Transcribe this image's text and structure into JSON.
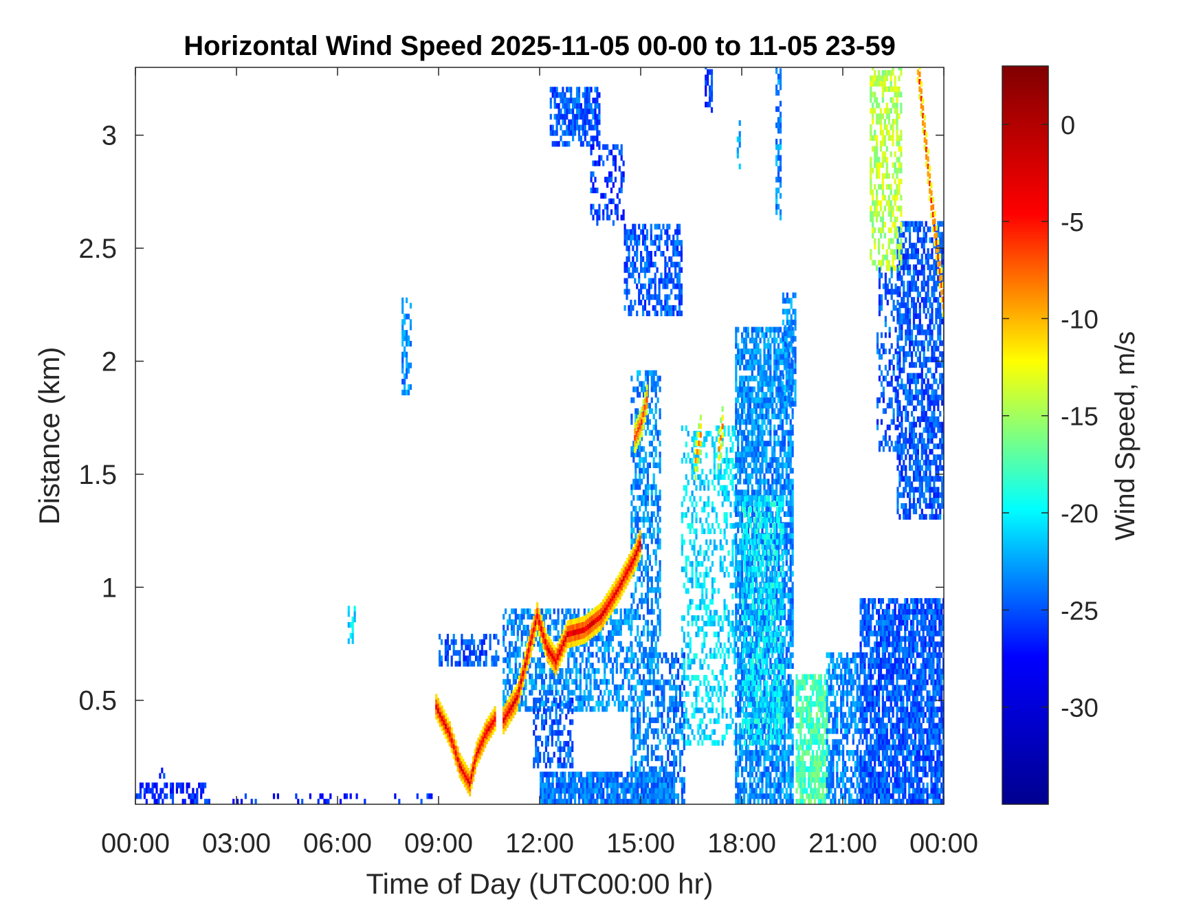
{
  "chart_data": {
    "type": "heatmap",
    "title": "Horizontal Wind Speed 2025-11-05 00-00 to 11-05 23-59",
    "xlabel": "Time of Day (UTC00:00 hr)",
    "ylabel": "Distance (km)",
    "colorbar_label": "Wind Speed, m/s",
    "xlim": [
      0,
      24
    ],
    "ylim": [
      0.04,
      3.3
    ],
    "clim": [
      -35,
      3
    ],
    "x_ticks": [
      0,
      3,
      6,
      9,
      12,
      15,
      18,
      21,
      24
    ],
    "x_tick_labels": [
      "00:00",
      "03:00",
      "06:00",
      "09:00",
      "12:00",
      "15:00",
      "18:00",
      "21:00",
      "00:00"
    ],
    "y_ticks": [
      0.5,
      1,
      1.5,
      2,
      2.5,
      3
    ],
    "y_tick_labels": [
      "0.5",
      "1",
      "1.5",
      "2",
      "2.5",
      "3"
    ],
    "colorbar_ticks": [
      0,
      -5,
      -10,
      -15,
      -20,
      -25,
      -30
    ],
    "colorbar_tick_labels": [
      "0",
      "-5",
      "-10",
      "-15",
      "-20",
      "-25",
      "-30"
    ],
    "colormap": "jet",
    "colormap_stops": [
      "#00008f",
      "#0000ff",
      "#00ffff",
      "#ffff00",
      "#ff0000",
      "#800000"
    ],
    "grid": false,
    "regions": [
      {
        "t0": 0.0,
        "t1": 2.1,
        "d0": 0.04,
        "d1": 0.13,
        "v": -29,
        "density": 0.5
      },
      {
        "t0": 0.7,
        "t1": 1.1,
        "d0": 0.13,
        "d1": 0.2,
        "v": -29,
        "density": 0.25
      },
      {
        "t0": 2.1,
        "t1": 8.8,
        "d0": 0.04,
        "d1": 0.07,
        "v": -29,
        "density": 0.12
      },
      {
        "t0": 7.9,
        "t1": 8.15,
        "d0": 1.85,
        "d1": 2.28,
        "v": -25,
        "density": 0.6
      },
      {
        "t0": 6.3,
        "t1": 6.5,
        "d0": 0.75,
        "d1": 0.9,
        "v": -22,
        "density": 0.5
      },
      {
        "t0": 9.0,
        "t1": 10.8,
        "d0": 0.65,
        "d1": 0.78,
        "v": -27,
        "density": 0.5
      },
      {
        "t0": 10.9,
        "t1": 14.7,
        "d0": 0.45,
        "d1": 0.9,
        "v": -25,
        "density": 0.55
      },
      {
        "t0": 11.8,
        "t1": 13.0,
        "d0": 0.2,
        "d1": 0.5,
        "v": -27,
        "density": 0.45
      },
      {
        "t0": 12.0,
        "t1": 16.0,
        "d0": 0.04,
        "d1": 0.16,
        "v": -26,
        "density": 0.9
      },
      {
        "t0": 12.3,
        "t1": 13.8,
        "d0": 2.95,
        "d1": 3.2,
        "v": -27,
        "density": 0.65
      },
      {
        "t0": 13.5,
        "t1": 14.5,
        "d0": 2.6,
        "d1": 2.95,
        "v": -28,
        "density": 0.4
      },
      {
        "t0": 14.5,
        "t1": 16.2,
        "d0": 2.2,
        "d1": 2.6,
        "v": -27,
        "density": 0.55
      },
      {
        "t0": 14.7,
        "t1": 15.6,
        "d0": 0.04,
        "d1": 1.95,
        "v": -25,
        "density": 0.5
      },
      {
        "t0": 15.6,
        "t1": 16.3,
        "d0": 0.04,
        "d1": 0.7,
        "v": -26,
        "density": 0.55
      },
      {
        "t0": 16.2,
        "t1": 17.8,
        "d0": 0.3,
        "d1": 1.7,
        "v": -22,
        "density": 0.35
      },
      {
        "t0": 16.9,
        "t1": 17.1,
        "d0": 3.1,
        "d1": 3.3,
        "v": -28,
        "density": 0.5
      },
      {
        "t0": 17.8,
        "t1": 19.5,
        "d0": 0.04,
        "d1": 2.15,
        "v": -25,
        "density": 0.75
      },
      {
        "t0": 18.0,
        "t1": 19.2,
        "d0": 0.3,
        "d1": 1.4,
        "v": -21,
        "density": 0.45
      },
      {
        "t0": 19.2,
        "t1": 19.6,
        "d0": 1.8,
        "d1": 2.3,
        "v": -25,
        "density": 0.6
      },
      {
        "t0": 19.6,
        "t1": 20.5,
        "d0": 0.04,
        "d1": 0.6,
        "v": -18,
        "density": 0.75
      },
      {
        "t0": 20.5,
        "t1": 21.5,
        "d0": 0.04,
        "d1": 0.7,
        "v": -25,
        "density": 0.6
      },
      {
        "t0": 21.5,
        "t1": 24.0,
        "d0": 0.04,
        "d1": 0.95,
        "v": -27,
        "density": 0.8
      },
      {
        "t0": 22.6,
        "t1": 24.0,
        "d0": 1.3,
        "d1": 2.6,
        "v": -27,
        "density": 0.65
      },
      {
        "t0": 21.8,
        "t1": 22.7,
        "d0": 2.4,
        "d1": 3.3,
        "v": -14,
        "density": 0.55
      },
      {
        "t0": 22.0,
        "t1": 22.6,
        "d0": 1.6,
        "d1": 2.4,
        "v": -27,
        "density": 0.35
      },
      {
        "t0": 19.0,
        "t1": 19.15,
        "d0": 2.6,
        "d1": 3.3,
        "v": -25,
        "density": 0.5
      },
      {
        "t0": 17.85,
        "t1": 17.95,
        "d0": 2.85,
        "d1": 3.05,
        "v": -24,
        "density": 0.6
      }
    ],
    "traces": [
      {
        "points": [
          [
            8.9,
            0.46
          ],
          [
            9.3,
            0.34
          ],
          [
            9.6,
            0.2
          ],
          [
            9.9,
            0.12
          ],
          [
            10.1,
            0.25
          ],
          [
            10.4,
            0.35
          ],
          [
            10.7,
            0.42
          ]
        ],
        "v": -1,
        "halfwidth": 0.04
      },
      {
        "points": [
          [
            10.9,
            0.4
          ],
          [
            11.3,
            0.5
          ],
          [
            11.6,
            0.68
          ],
          [
            11.9,
            0.86
          ],
          [
            12.2,
            0.72
          ],
          [
            12.45,
            0.66
          ],
          [
            12.8,
            0.78
          ],
          [
            13.3,
            0.8
          ],
          [
            13.8,
            0.86
          ],
          [
            14.3,
            0.98
          ],
          [
            14.8,
            1.12
          ],
          [
            15.0,
            1.2
          ]
        ],
        "v": -1,
        "halfwidth": 0.045
      },
      {
        "points": [
          [
            14.8,
            1.65
          ],
          [
            15.0,
            1.72
          ],
          [
            15.2,
            1.85
          ]
        ],
        "v": -4,
        "halfwidth": 0.05
      },
      {
        "points": [
          [
            23.2,
            3.3
          ],
          [
            23.4,
            3.0
          ],
          [
            23.6,
            2.7
          ],
          [
            23.8,
            2.45
          ],
          [
            24.0,
            2.2
          ]
        ],
        "v": -3,
        "halfwidth": 0.06
      },
      {
        "points": [
          [
            16.6,
            1.55
          ],
          [
            16.8,
            1.7
          ]
        ],
        "v": -6,
        "halfwidth": 0.07
      },
      {
        "points": [
          [
            17.3,
            1.6
          ],
          [
            17.45,
            1.75
          ]
        ],
        "v": -6,
        "halfwidth": 0.07
      }
    ]
  }
}
